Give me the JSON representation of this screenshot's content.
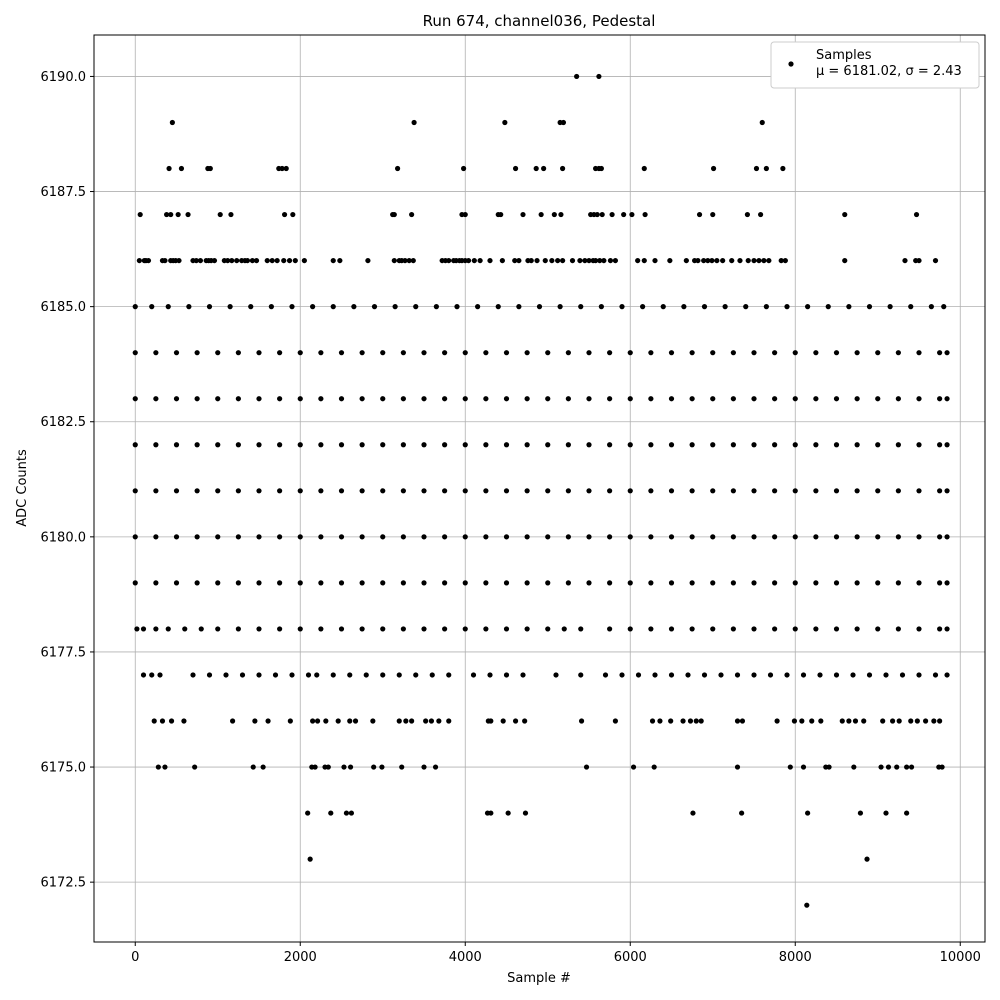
{
  "chart_data": {
    "type": "scatter",
    "title": "Run 674, channel036, Pedestal",
    "xlabel": "Sample #",
    "ylabel": "ADC Counts",
    "xlim": [
      -500,
      10300
    ],
    "ylim": [
      6171.2,
      6190.9
    ],
    "xticks": [
      0,
      2000,
      4000,
      6000,
      8000,
      10000
    ],
    "xtick_labels": [
      "0",
      "2000",
      "4000",
      "6000",
      "8000",
      "10000"
    ],
    "yticks": [
      6172.5,
      6175.0,
      6177.5,
      6180.0,
      6182.5,
      6185.0,
      6187.5,
      6190.0
    ],
    "ytick_labels": [
      "6172.5",
      "6175.0",
      "6177.5",
      "6180.0",
      "6182.5",
      "6185.0",
      "6187.5",
      "6190.0"
    ],
    "grid": true,
    "legend": {
      "position": "top-right",
      "entries": [
        {
          "name": "Samples",
          "stat": "μ = 6181.02, σ = 2.43"
        }
      ]
    },
    "marker_color": "#000000",
    "series": [
      {
        "name": "Samples",
        "x_range": [
          0,
          9850
        ],
        "points": [
          {
            "y": 6190,
            "x": [
              5350,
              5620
            ]
          },
          {
            "y": 6189,
            "x": [
              450,
              3380,
              4480,
              5150,
              5190,
              7600
            ]
          },
          {
            "y": 6188,
            "x": [
              410,
              560,
              880,
              910,
              1740,
              1780,
              1830,
              3180,
              3980,
              4610,
              4860,
              4950,
              5180,
              5580,
              5620,
              5650,
              6170,
              7010,
              7530,
              7650,
              7850
            ]
          },
          {
            "y": 6187,
            "x": [
              60,
              380,
              430,
              520,
              640,
              1030,
              1160,
              1810,
              1910,
              3120,
              3140,
              3350,
              3960,
              4000,
              4400,
              4430,
              4700,
              4920,
              5080,
              5160,
              5520,
              5560,
              5600,
              5660,
              5780,
              5920,
              6020,
              6180,
              6840,
              7000,
              7420,
              7580,
              8600,
              9470
            ]
          },
          {
            "y": 6186,
            "x": [
              50,
              110,
              130,
              160,
              330,
              360,
              430,
              460,
              490,
              530,
              700,
              740,
              790,
              860,
              890,
              920,
              960,
              1080,
              1120,
              1170,
              1230,
              1290,
              1330,
              1360,
              1420,
              1470,
              1600,
              1660,
              1720,
              1800,
              1870,
              1940,
              2050,
              2400,
              2480,
              2820,
              3140,
              3200,
              3230,
              3270,
              3320,
              3370,
              3720,
              3760,
              3800,
              3860,
              3890,
              3930,
              3960,
              4000,
              4040,
              4110,
              4180,
              4300,
              4450,
              4600,
              4650,
              4760,
              4800,
              4870,
              4970,
              5050,
              5120,
              5180,
              5300,
              5390,
              5450,
              5500,
              5550,
              5580,
              5630,
              5680,
              5760,
              5820,
              6090,
              6170,
              6300,
              6480,
              6680,
              6780,
              6820,
              6890,
              6940,
              6990,
              7050,
              7120,
              7230,
              7330,
              7430,
              7500,
              7560,
              7620,
              7680,
              7830,
              7880,
              8600,
              9330,
              9460,
              9500,
              9700
            ]
          },
          {
            "y": 6185,
            "x": [
              0,
              200,
              400,
              650,
              900,
              1150,
              1400,
              1650,
              1900,
              2150,
              2400,
              2650,
              2900,
              3150,
              3400,
              3650,
              3900,
              4150,
              4400,
              4650,
              4900,
              5150,
              5400,
              5650,
              5900,
              6150,
              6400,
              6650,
              6900,
              7150,
              7400,
              7650,
              7900,
              8150,
              8400,
              8650,
              8900,
              9150,
              9400,
              9650,
              9800
            ]
          },
          {
            "y": 6184,
            "x": [
              0,
              250,
              500,
              750,
              1000,
              1250,
              1500,
              1750,
              2000,
              2250,
              2500,
              2750,
              3000,
              3250,
              3500,
              3750,
              4000,
              4250,
              4500,
              4750,
              5000,
              5250,
              5500,
              5750,
              6000,
              6250,
              6500,
              6750,
              7000,
              7250,
              7500,
              7750,
              8000,
              8250,
              8500,
              8750,
              9000,
              9250,
              9500,
              9750,
              9840
            ]
          },
          {
            "y": 6183,
            "x": [
              0,
              250,
              500,
              750,
              1000,
              1250,
              1500,
              1750,
              2000,
              2250,
              2500,
              2750,
              3000,
              3250,
              3500,
              3750,
              4000,
              4250,
              4500,
              4750,
              5000,
              5250,
              5500,
              5750,
              6000,
              6250,
              6500,
              6750,
              7000,
              7250,
              7500,
              7750,
              8000,
              8250,
              8500,
              8750,
              9000,
              9250,
              9500,
              9750,
              9840
            ]
          },
          {
            "y": 6182,
            "x": [
              0,
              250,
              500,
              750,
              1000,
              1250,
              1500,
              1750,
              2000,
              2250,
              2500,
              2750,
              3000,
              3250,
              3500,
              3750,
              4000,
              4250,
              4500,
              4750,
              5000,
              5250,
              5500,
              5750,
              6000,
              6250,
              6500,
              6750,
              7000,
              7250,
              7500,
              7750,
              8000,
              8250,
              8500,
              8750,
              9000,
              9250,
              9500,
              9750,
              9840
            ]
          },
          {
            "y": 6181,
            "x": [
              0,
              250,
              500,
              750,
              1000,
              1250,
              1500,
              1750,
              2000,
              2250,
              2500,
              2750,
              3000,
              3250,
              3500,
              3750,
              4000,
              4250,
              4500,
              4750,
              5000,
              5250,
              5500,
              5750,
              6000,
              6250,
              6500,
              6750,
              7000,
              7250,
              7500,
              7750,
              8000,
              8250,
              8500,
              8750,
              9000,
              9250,
              9500,
              9750,
              9840
            ]
          },
          {
            "y": 6180,
            "x": [
              0,
              250,
              500,
              750,
              1000,
              1250,
              1500,
              1750,
              2000,
              2250,
              2500,
              2750,
              3000,
              3250,
              3500,
              3750,
              4000,
              4250,
              4500,
              4750,
              5000,
              5250,
              5500,
              5750,
              6000,
              6250,
              6500,
              6750,
              7000,
              7250,
              7500,
              7750,
              8000,
              8250,
              8500,
              8750,
              9000,
              9250,
              9500,
              9750,
              9840
            ]
          },
          {
            "y": 6179,
            "x": [
              0,
              250,
              500,
              750,
              1000,
              1250,
              1500,
              1750,
              2000,
              2250,
              2500,
              2750,
              3000,
              3250,
              3500,
              3750,
              4000,
              4250,
              4500,
              4750,
              5000,
              5250,
              5500,
              5750,
              6000,
              6250,
              6500,
              6750,
              7000,
              7250,
              7500,
              7750,
              8000,
              8250,
              8500,
              8750,
              9000,
              9250,
              9500,
              9750,
              9840
            ]
          },
          {
            "y": 6178,
            "x": [
              20,
              100,
              250,
              400,
              600,
              800,
              1000,
              1250,
              1500,
              1750,
              2000,
              2250,
              2500,
              2750,
              3000,
              3250,
              3500,
              3750,
              4000,
              4250,
              4500,
              4750,
              5000,
              5200,
              5400,
              5750,
              6000,
              6250,
              6500,
              6750,
              7000,
              7250,
              7500,
              7750,
              8000,
              8250,
              8500,
              8750,
              9000,
              9250,
              9500,
              9750,
              9840
            ]
          },
          {
            "y": 6177,
            "x": [
              100,
              200,
              300,
              700,
              900,
              1100,
              1300,
              1500,
              1700,
              1900,
              2100,
              2200,
              2400,
              2600,
              2800,
              3000,
              3200,
              3400,
              3600,
              3800,
              4100,
              4300,
              4500,
              4700,
              5100,
              5400,
              5700,
              5900,
              6100,
              6300,
              6500,
              6700,
              6900,
              7100,
              7300,
              7500,
              7700,
              7900,
              8100,
              8300,
              8500,
              8700,
              8900,
              9100,
              9300,
              9500,
              9700,
              9840
            ]
          },
          {
            "y": 6176,
            "x": [
              230,
              330,
              440,
              590,
              1180,
              1450,
              1610,
              1880,
              2150,
              2210,
              2310,
              2460,
              2600,
              2670,
              2880,
              3200,
              3280,
              3350,
              3520,
              3590,
              3680,
              3800,
              4280,
              4310,
              4460,
              4610,
              4720,
              5410,
              5820,
              6270,
              6360,
              6490,
              6640,
              6730,
              6800,
              6860,
              7300,
              7360,
              7780,
              7990,
              8080,
              8200,
              8310,
              8570,
              8650,
              8730,
              8830,
              9060,
              9180,
              9260,
              9400,
              9480,
              9580,
              9680,
              9750
            ]
          },
          {
            "y": 6175,
            "x": [
              280,
              360,
              720,
              1430,
              1550,
              2140,
              2180,
              2300,
              2340,
              2530,
              2610,
              2890,
              2990,
              3230,
              3500,
              3640,
              5470,
              6040,
              6290,
              7300,
              7940,
              8100,
              8370,
              8410,
              8710,
              9040,
              9130,
              9230,
              9350,
              9410,
              9740,
              9780
            ]
          },
          {
            "y": 6174,
            "x": [
              2090,
              2370,
              2560,
              2620,
              4270,
              4310,
              4520,
              4730,
              6760,
              7350,
              8150,
              8790,
              9100,
              9350
            ]
          },
          {
            "y": 6173,
            "x": [
              2120,
              8870
            ]
          },
          {
            "y": 6172,
            "x": [
              8140
            ]
          }
        ]
      }
    ]
  }
}
